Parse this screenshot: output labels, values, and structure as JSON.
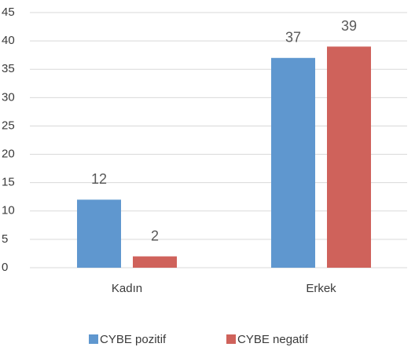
{
  "chart_data": {
    "type": "bar",
    "categories": [
      "Kadın",
      "Erkek"
    ],
    "series": [
      {
        "name": "CYBE pozitif",
        "color": "#5f97cf",
        "values": [
          12,
          37
        ]
      },
      {
        "name": "CYBE negatif",
        "color": "#cf625b",
        "values": [
          2,
          39
        ]
      }
    ],
    "ylim": [
      0,
      45
    ],
    "yticks": [
      0,
      5,
      10,
      15,
      20,
      25,
      30,
      35,
      40,
      45
    ],
    "grid": true,
    "legend": "bottom"
  }
}
